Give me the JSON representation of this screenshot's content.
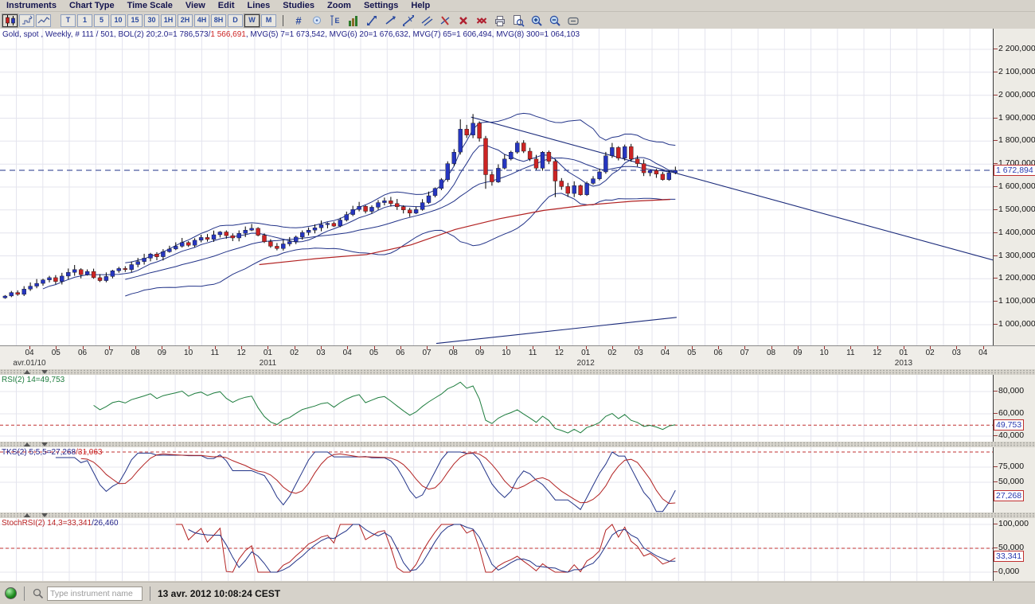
{
  "colors": {
    "up_candle": "#2636c0",
    "down_candle": "#cc2424",
    "wick": "#000000",
    "ma_navy": "#223388",
    "ma_red": "#b22222",
    "grid": "#e4e4ee",
    "dashed_price": "#223388",
    "dashed_level": "#c03030",
    "rsi_green": "#1e7d3e",
    "legend_navy": "#222288",
    "legend_red": "#cc2222"
  },
  "menu_bar": {
    "items": [
      "Instruments",
      "Chart Type",
      "Time Scale",
      "View",
      "Edit",
      "Lines",
      "Studies",
      "Zoom",
      "Settings",
      "Help"
    ]
  },
  "toolbar": {
    "chart_type_buttons": [
      {
        "name": "candlestick-chart-icon",
        "selected": true
      },
      {
        "name": "step-chart-icon",
        "selected": false
      },
      {
        "name": "line-chart-icon",
        "selected": false
      }
    ],
    "timeframe_buttons": [
      {
        "label": "T",
        "selected": false
      },
      {
        "label": "1",
        "selected": false
      },
      {
        "label": "5",
        "selected": false
      },
      {
        "label": "10",
        "selected": false
      },
      {
        "label": "15",
        "selected": false
      },
      {
        "label": "30",
        "selected": false
      },
      {
        "label": "1H",
        "selected": false
      },
      {
        "label": "2H",
        "selected": false
      },
      {
        "label": "4H",
        "selected": false
      },
      {
        "label": "8H",
        "selected": false
      },
      {
        "label": "D",
        "selected": false
      },
      {
        "label": "W",
        "selected": true
      },
      {
        "label": "M",
        "selected": false
      }
    ],
    "tool_icons": [
      {
        "name": "hash-tool-icon"
      },
      {
        "name": "alert-bubble-icon"
      },
      {
        "name": "price-scale-icon"
      },
      {
        "name": "volume-histogram-icon"
      },
      {
        "name": "trend-segment-icon"
      },
      {
        "name": "trend-ray-icon"
      },
      {
        "name": "trend-extended-icon"
      },
      {
        "name": "trend-parallel-icon"
      },
      {
        "name": "remove-line-icon"
      },
      {
        "name": "delete-drawing-icon"
      },
      {
        "name": "delete-all-drawings-icon"
      },
      {
        "name": "print-icon"
      },
      {
        "name": "print-preview-icon"
      },
      {
        "name": "zoom-in-icon"
      },
      {
        "name": "zoom-out-icon"
      },
      {
        "name": "zoom-reset-icon"
      }
    ]
  },
  "legend": {
    "segments": [
      {
        "text": "Gold, spot , Weekly, # 111 / 501, BOL(2) 20;2.0=1 786,573/",
        "color": "#222288"
      },
      {
        "text": "1 566,691",
        "color": "#cc2222"
      },
      {
        "text": ", MVG(5) 7=1 673,542, MVG(6) 20=1 676,632, MVG(7) 65=1 606,494, MVG(8) 300=1 064,103",
        "color": "#222288"
      }
    ]
  },
  "main_axis": {
    "ticks": [
      {
        "value": 2200,
        "label": "2 200,000"
      },
      {
        "value": 2100,
        "label": "2 100,000"
      },
      {
        "value": 2000,
        "label": "2 000,000"
      },
      {
        "value": 1900,
        "label": "1 900,000"
      },
      {
        "value": 1800,
        "label": "1 800,000"
      },
      {
        "value": 1700,
        "label": "1 700,000"
      },
      {
        "value": 1600,
        "label": "1 600,000"
      },
      {
        "value": 1500,
        "label": "1 500,000"
      },
      {
        "value": 1400,
        "label": "1 400,000"
      },
      {
        "value": 1300,
        "label": "1 300,000"
      },
      {
        "value": 1200,
        "label": "1 200,000"
      },
      {
        "value": 1100,
        "label": "1 100,000"
      },
      {
        "value": 1000,
        "label": "1 000,000"
      }
    ],
    "price_box": {
      "label": "1 672,894",
      "value": 1672.894
    }
  },
  "x_axis": {
    "month_labels": [
      "04",
      "05",
      "06",
      "07",
      "08",
      "09",
      "10",
      "11",
      "12",
      "01",
      "02",
      "03",
      "04",
      "05",
      "06",
      "07",
      "08",
      "09",
      "10",
      "11",
      "12",
      "01",
      "02",
      "03",
      "04",
      "05",
      "06",
      "07",
      "08",
      "09",
      "10",
      "11",
      "12",
      "01",
      "02",
      "03",
      "04"
    ],
    "year_labels": [
      {
        "index": 0,
        "label": "avr.01/10"
      },
      {
        "index": 9,
        "label": "2011"
      },
      {
        "index": 21,
        "label": "2012"
      },
      {
        "index": 33,
        "label": "2013"
      }
    ]
  },
  "chart_data": {
    "type": "candlestick",
    "title": "Gold, spot, Weekly",
    "x_unit": "weeks",
    "weeks_total": 157,
    "value_range": [
      932,
      2290
    ],
    "last_price": 1672.894,
    "closes": [
      1125,
      1140,
      1132,
      1155,
      1168,
      1180,
      1195,
      1205,
      1188,
      1212,
      1228,
      1240,
      1218,
      1232,
      1205,
      1192,
      1210,
      1235,
      1245,
      1240,
      1262,
      1275,
      1290,
      1308,
      1296,
      1318,
      1330,
      1342,
      1358,
      1346,
      1368,
      1380,
      1372,
      1392,
      1404,
      1388,
      1378,
      1398,
      1412,
      1420,
      1390,
      1362,
      1342,
      1332,
      1352,
      1362,
      1382,
      1402,
      1412,
      1422,
      1436,
      1442,
      1430,
      1456,
      1480,
      1502,
      1516,
      1494,
      1512,
      1532,
      1540,
      1528,
      1514,
      1500,
      1486,
      1502,
      1532,
      1562,
      1594,
      1632,
      1702,
      1752,
      1852,
      1826,
      1878,
      1812,
      1654,
      1622,
      1682,
      1722,
      1752,
      1792,
      1756,
      1722,
      1682,
      1752,
      1712,
      1626,
      1602,
      1572,
      1606,
      1566,
      1616,
      1636,
      1666,
      1736,
      1772,
      1726,
      1776,
      1722,
      1702,
      1662,
      1672,
      1656,
      1632,
      1662,
      1672.894
    ],
    "high_overrides": {
      "72": 1895,
      "74": 1918
    },
    "low_overrides": {
      "76": 1592,
      "87": 1556
    },
    "overlays": {
      "bollinger": {
        "period": 20,
        "deviation": 2.0,
        "upper_last": "1 786,573",
        "lower_last": "1 566,691"
      },
      "mvg_periods": [
        7,
        20
      ],
      "mvg_last_values": {
        "mvg7": "1 673,542",
        "mvg20": "1 676,632",
        "mvg65": "1 606,494",
        "mvg300": "1 064,103"
      },
      "red_ma_polyline": [
        [
          41,
          1262
        ],
        [
          50,
          1288
        ],
        [
          58,
          1306
        ],
        [
          65,
          1348
        ],
        [
          72,
          1415
        ],
        [
          79,
          1462
        ],
        [
          86,
          1498
        ],
        [
          93,
          1522
        ],
        [
          100,
          1538
        ],
        [
          106,
          1546
        ]
      ],
      "trendlines": [
        {
          "from": [
            74.5,
            1905
          ],
          "to": [
            157,
            1282
          ]
        },
        {
          "from": [
            69,
            918
          ],
          "to": [
            107,
            1032
          ]
        }
      ]
    }
  },
  "panels": [
    {
      "id": "rsi",
      "label_segments": [
        {
          "text": "RSI(2) 14=49,753",
          "color": "#1e7d3e"
        }
      ],
      "ticks": [
        {
          "value": 80,
          "label": "80,000"
        },
        {
          "value": 60,
          "label": "60,000"
        },
        {
          "value": 40,
          "label": "40,000"
        }
      ],
      "box": {
        "label": "49,753",
        "value": 49.753
      },
      "dashed_level": 49.753,
      "series": [
        {
          "name": "rsi",
          "period": 14,
          "color": "#1e7d3e"
        }
      ],
      "last_values": "49,753"
    },
    {
      "id": "stochastic",
      "label_segments": [
        {
          "text": "TKS(2) 5;5,5=27,268",
          "color": "#222288"
        },
        {
          "text": "/31,063",
          "color": "#cc2222"
        }
      ],
      "ticks": [
        {
          "value": 75,
          "label": "75,000"
        },
        {
          "value": 50,
          "label": "50,000"
        }
      ],
      "box": {
        "label": "27,268",
        "value": 27.268
      },
      "dashed_level": 100,
      "series": [
        {
          "name": "k",
          "color": "#223388"
        },
        {
          "name": "d",
          "color": "#b22222"
        }
      ],
      "last_values": "27,268/31,063"
    },
    {
      "id": "stochrsi",
      "label_segments": [
        {
          "text": "StochRSI(2) 14,3=33,341",
          "color": "#bb2222"
        },
        {
          "text": "/26,460",
          "color": "#222288"
        }
      ],
      "ticks": [
        {
          "value": 100,
          "label": "100,000"
        },
        {
          "value": 50,
          "label": "50,000"
        },
        {
          "value": 0,
          "label": "0,000"
        }
      ],
      "box": {
        "label": "33,341",
        "value": 33.341
      },
      "dashed_level": 50,
      "series": [
        {
          "name": "stochrsi",
          "color": "#b22222"
        },
        {
          "name": "signal",
          "color": "#223388"
        }
      ],
      "last_values": "33,341/26,460"
    }
  ],
  "status_bar": {
    "search_placeholder": "Type instrument name",
    "datetime": "13 avr. 2012 10:08:24 CEST"
  }
}
